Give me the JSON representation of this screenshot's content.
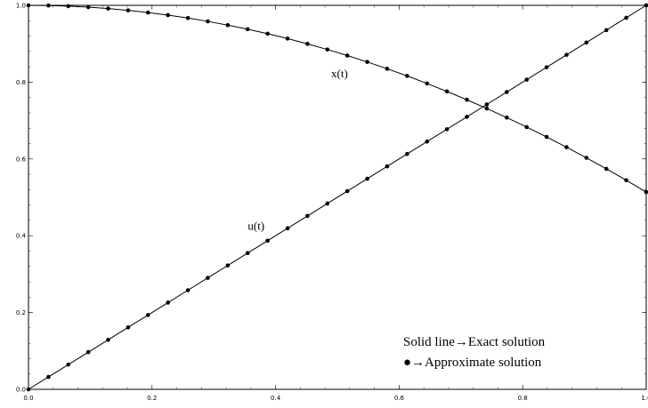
{
  "chart_data": {
    "type": "line",
    "title": "",
    "xlabel": "",
    "ylabel": "",
    "xlim": [
      0,
      1
    ],
    "ylim": [
      0,
      1
    ],
    "grid": false,
    "x_ticks": [
      "0.0",
      "0.2",
      "0.4",
      "0.6",
      "0.8",
      "1.0"
    ],
    "y_ticks": [
      "0.0",
      "0.2",
      "0.4",
      "0.6",
      "0.8",
      "1.0"
    ],
    "series": [
      {
        "name": "x(t)",
        "style": "solid-with-dots",
        "x": [
          0.0,
          0.0323,
          0.0645,
          0.0968,
          0.129,
          0.1613,
          0.1935,
          0.2258,
          0.2581,
          0.2903,
          0.3226,
          0.3548,
          0.3871,
          0.4194,
          0.4516,
          0.4839,
          0.5161,
          0.5484,
          0.5806,
          0.6129,
          0.6452,
          0.6774,
          0.7097,
          0.7419,
          0.7742,
          0.8065,
          0.8387,
          0.871,
          0.9032,
          0.9355,
          0.9677,
          1.0
        ],
        "y": [
          1.0,
          0.9995,
          0.9979,
          0.9953,
          0.9917,
          0.987,
          0.9813,
          0.9746,
          0.9669,
          0.9582,
          0.9485,
          0.9378,
          0.9261,
          0.9134,
          0.8997,
          0.885,
          0.8693,
          0.8526,
          0.8349,
          0.8162,
          0.7965,
          0.7758,
          0.7541,
          0.7314,
          0.7077,
          0.683,
          0.6573,
          0.6306,
          0.6029,
          0.5742,
          0.5445,
          0.5138
        ]
      },
      {
        "name": "u(t)",
        "style": "solid-with-dots",
        "x": [
          0.0,
          0.0323,
          0.0645,
          0.0968,
          0.129,
          0.1613,
          0.1935,
          0.2258,
          0.2581,
          0.2903,
          0.3226,
          0.3548,
          0.3871,
          0.4194,
          0.4516,
          0.4839,
          0.5161,
          0.5484,
          0.5806,
          0.6129,
          0.6452,
          0.6774,
          0.7097,
          0.7419,
          0.7742,
          0.8065,
          0.8387,
          0.871,
          0.9032,
          0.9355,
          0.9677,
          1.0
        ],
        "y": [
          0.0,
          0.0323,
          0.0645,
          0.0968,
          0.129,
          0.1613,
          0.1935,
          0.2258,
          0.2581,
          0.2903,
          0.3226,
          0.3548,
          0.3871,
          0.4194,
          0.4516,
          0.4839,
          0.5161,
          0.5484,
          0.5806,
          0.6129,
          0.6452,
          0.6774,
          0.7097,
          0.7419,
          0.7742,
          0.8065,
          0.8387,
          0.871,
          0.9032,
          0.9355,
          0.9677,
          1.0
        ]
      }
    ],
    "annotations": [
      {
        "text": "x(t)",
        "x": 0.49,
        "y": 0.812
      },
      {
        "text": "u(t)",
        "x": 0.355,
        "y": 0.415
      }
    ],
    "legend": {
      "placement": "bottom-right",
      "lines": [
        "Solid line→Exact solution",
        "●→Approximate solution"
      ]
    }
  }
}
